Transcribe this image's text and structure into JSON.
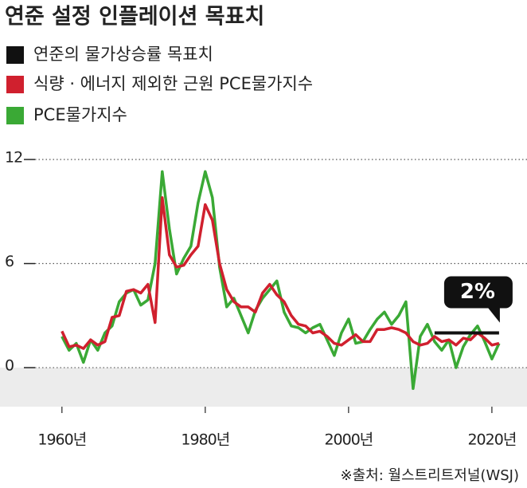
{
  "chart_data": {
    "type": "line",
    "title": "연준 설정 인플레이션 목표치",
    "source": "※출처: 월스트리트저널(WSJ)",
    "annotation": "2%",
    "x": [
      1960,
      1961,
      1962,
      1963,
      1964,
      1965,
      1966,
      1967,
      1968,
      1969,
      1970,
      1971,
      1972,
      1973,
      1974,
      1975,
      1976,
      1977,
      1978,
      1979,
      1980,
      1981,
      1982,
      1983,
      1984,
      1985,
      1986,
      1987,
      1988,
      1989,
      1990,
      1991,
      1992,
      1993,
      1994,
      1995,
      1996,
      1997,
      1998,
      1999,
      2000,
      2001,
      2002,
      2003,
      2004,
      2005,
      2006,
      2007,
      2008,
      2009,
      2010,
      2011,
      2012,
      2013,
      2014,
      2015,
      2016,
      2017,
      2018,
      2019,
      2020,
      2021
    ],
    "series": [
      {
        "name": "연준의 물가상승률 목표치",
        "color": "#111111",
        "values": [
          null,
          null,
          null,
          null,
          null,
          null,
          null,
          null,
          null,
          null,
          null,
          null,
          null,
          null,
          null,
          null,
          null,
          null,
          null,
          null,
          null,
          null,
          null,
          null,
          null,
          null,
          null,
          null,
          null,
          null,
          null,
          null,
          null,
          null,
          null,
          null,
          null,
          null,
          null,
          null,
          null,
          null,
          null,
          null,
          null,
          null,
          null,
          null,
          null,
          null,
          null,
          null,
          2,
          2,
          2,
          2,
          2,
          2,
          2,
          2,
          2,
          2
        ]
      },
      {
        "name": "식량 · 에너지 제외한 근원 PCE물가지수",
        "color": "#d0202e",
        "values": [
          2.1,
          1.2,
          1.3,
          1.1,
          1.6,
          1.3,
          1.5,
          2.9,
          3.0,
          4.4,
          4.5,
          4.3,
          4.8,
          2.6,
          9.8,
          6.5,
          5.8,
          5.9,
          6.5,
          7.0,
          9.4,
          8.5,
          6.0,
          4.5,
          3.8,
          3.5,
          3.5,
          3.2,
          4.3,
          4.8,
          4.2,
          3.8,
          3.0,
          2.5,
          2.4,
          2.0,
          2.1,
          1.8,
          1.4,
          1.3,
          1.6,
          1.9,
          1.5,
          1.5,
          2.2,
          2.2,
          2.3,
          2.2,
          2.0,
          1.5,
          1.3,
          1.4,
          1.8,
          1.5,
          1.6,
          1.3,
          1.7,
          1.6,
          2.0,
          1.7,
          1.3,
          1.4
        ]
      },
      {
        "name": "PCE물가지수",
        "color": "#3aa935",
        "values": [
          1.8,
          1.0,
          1.4,
          0.3,
          1.6,
          1.0,
          2.0,
          2.4,
          3.8,
          4.3,
          4.5,
          3.6,
          3.9,
          6.0,
          11.3,
          8.0,
          5.4,
          6.3,
          7.0,
          9.5,
          11.3,
          9.8,
          5.8,
          3.5,
          4.0,
          3.0,
          2.0,
          3.3,
          4.0,
          4.5,
          5.0,
          3.2,
          2.4,
          2.3,
          2.0,
          2.3,
          2.5,
          1.6,
          0.7,
          2.0,
          2.8,
          1.4,
          1.5,
          2.2,
          2.8,
          3.2,
          2.5,
          3.0,
          3.8,
          -1.2,
          1.8,
          2.5,
          1.5,
          1.0,
          1.6,
          0.0,
          1.2,
          1.9,
          2.4,
          1.5,
          0.5,
          1.4
        ]
      }
    ],
    "xlim": [
      1955.8,
      2024.9
    ],
    "ylim": [
      -2.25,
      12
    ],
    "yticks": [
      0,
      6,
      12
    ],
    "xticks": [
      {
        "value": 1960,
        "label": "1960년"
      },
      {
        "value": 1980,
        "label": "1980년"
      },
      {
        "value": 2000,
        "label": "2000년"
      },
      {
        "value": 2020,
        "label": "2020년"
      }
    ],
    "grid": true
  }
}
